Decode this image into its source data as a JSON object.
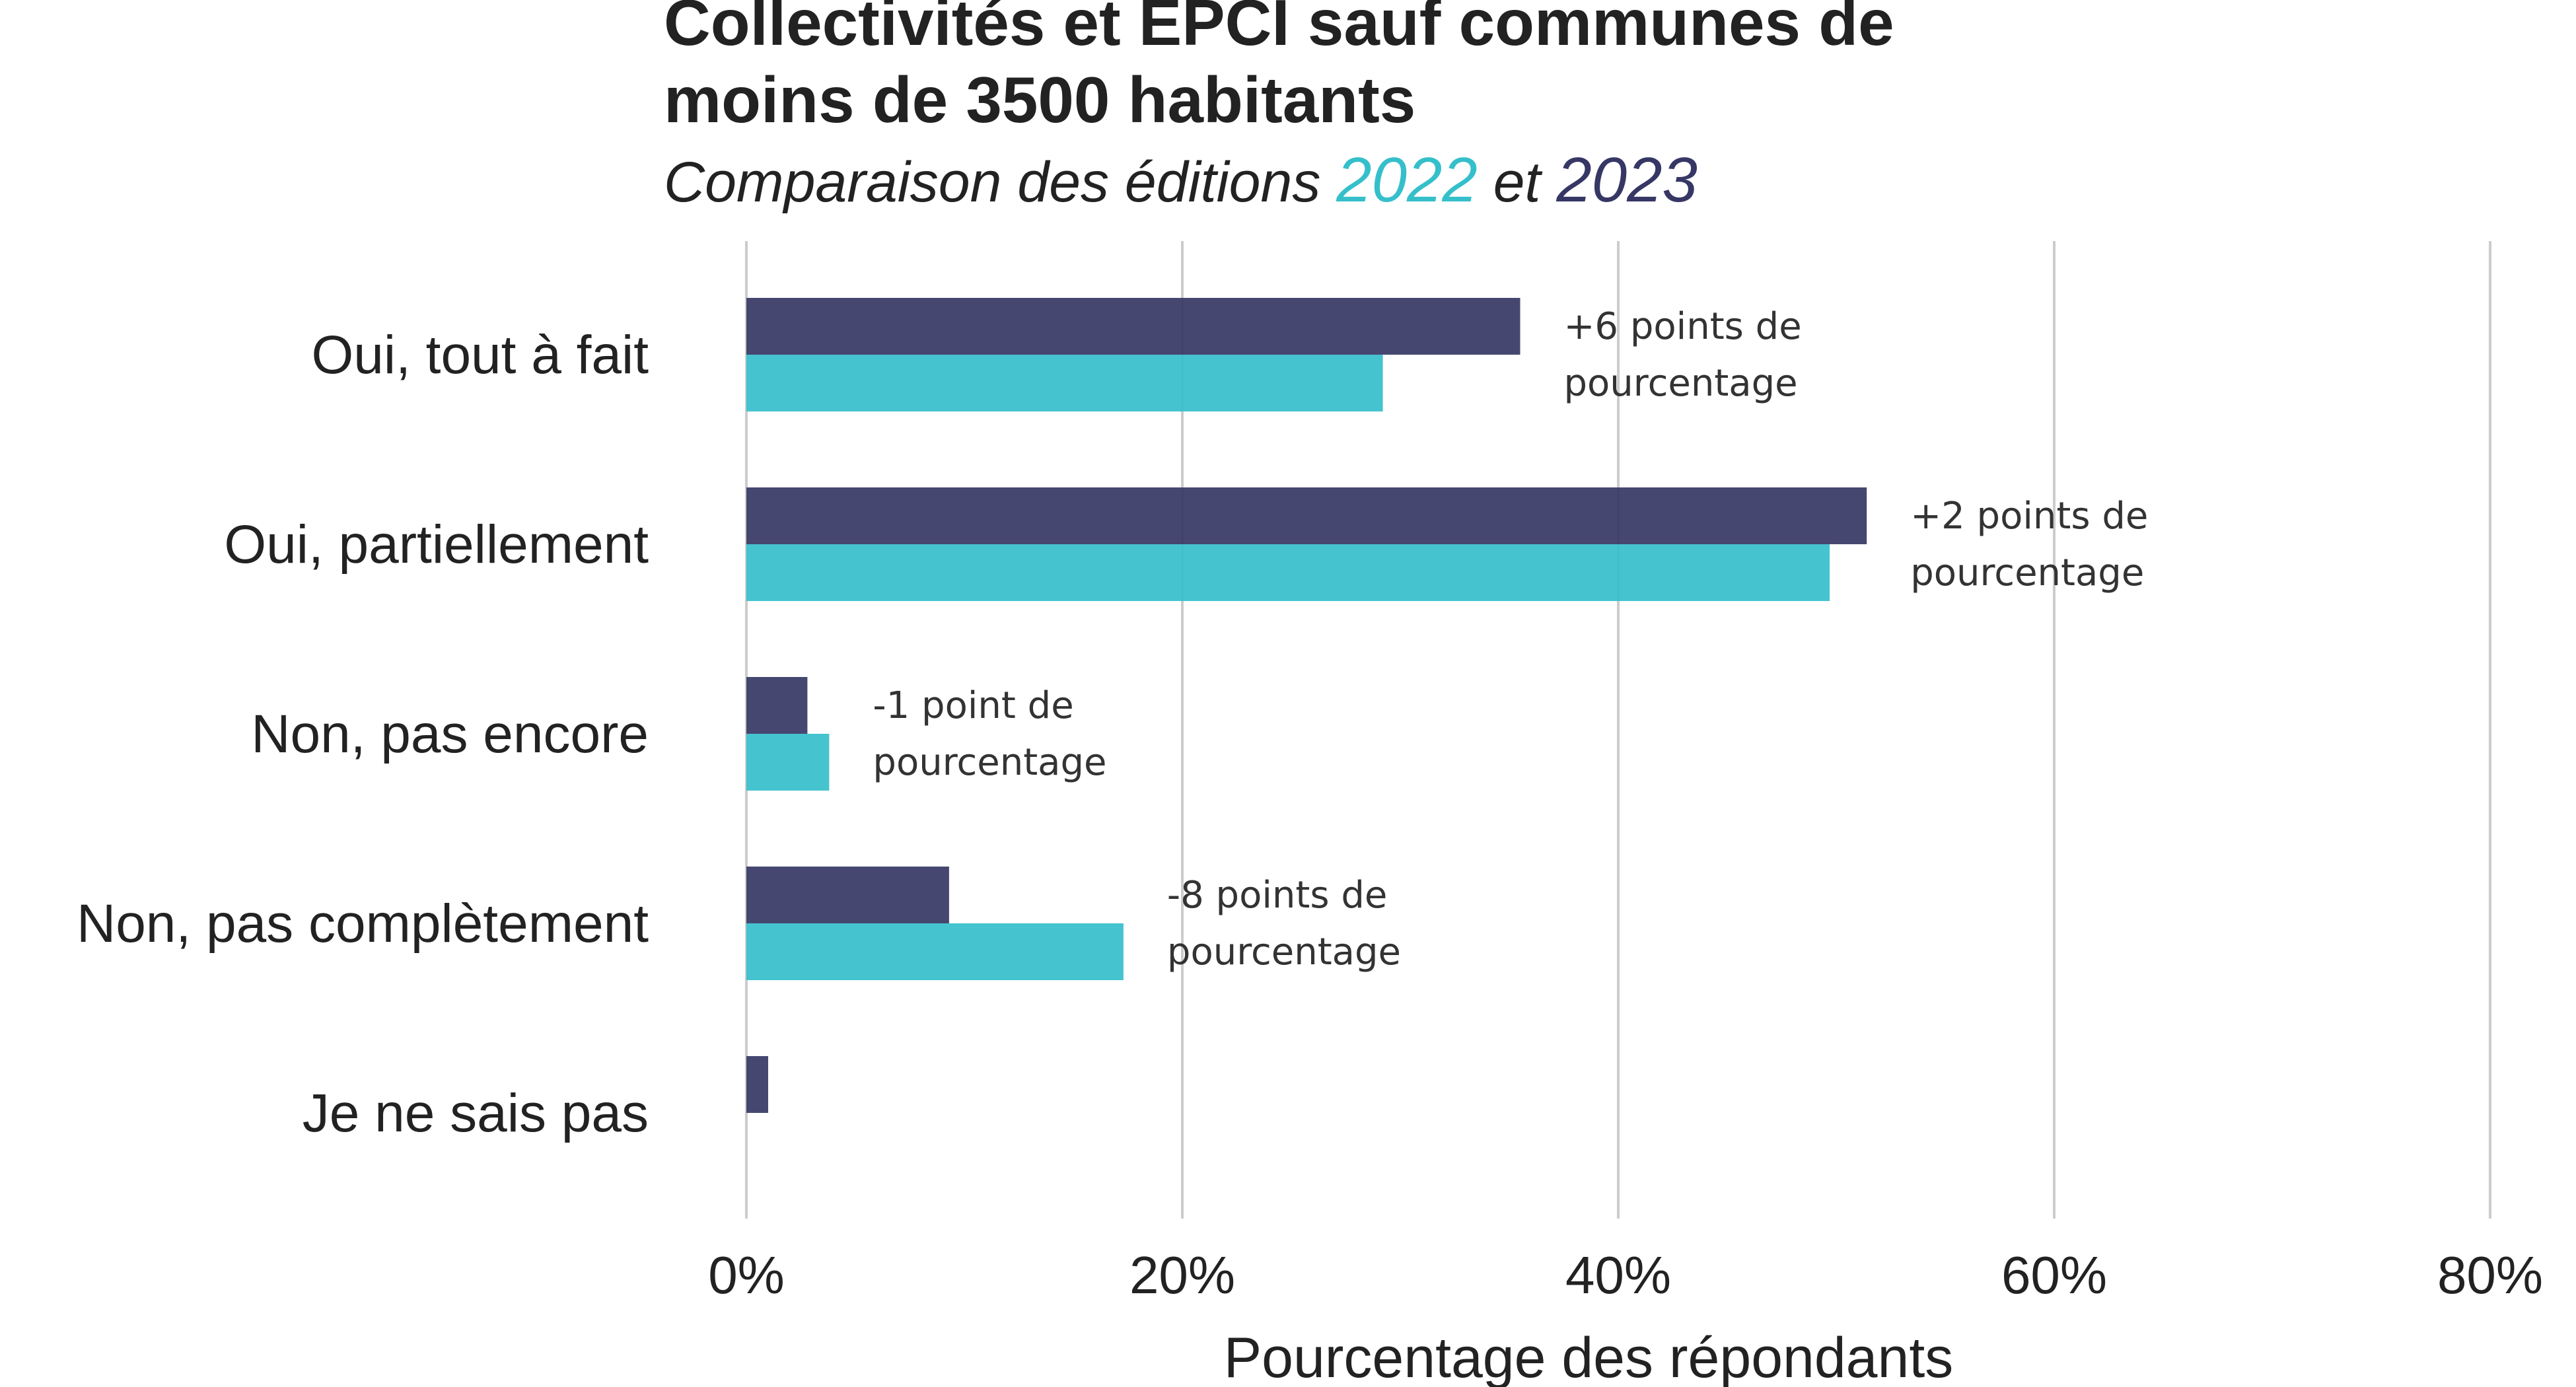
{
  "chart_data": {
    "type": "bar",
    "orientation": "horizontal",
    "title_lines": [
      "Collectivités et EPCI sauf communes de",
      "moins de 3500 habitants"
    ],
    "subtitle": {
      "prefix": "Comparaison des éditions ",
      "year_a": "2022",
      "middle": " et ",
      "year_b": "2023"
    },
    "xlabel": "Pourcentage des répondants",
    "ylabel": "",
    "xlim": [
      0,
      80
    ],
    "x_ticks": [
      0,
      20,
      40,
      60,
      80
    ],
    "x_tick_labels": [
      "0%",
      "20%",
      "40%",
      "60%",
      "80%"
    ],
    "grid": true,
    "categories": [
      "Oui, tout à fait",
      "Oui, partiellement",
      "Non, pas encore",
      "Non, pas complètement",
      "Je ne sais pas"
    ],
    "series": [
      {
        "name": "2023",
        "color": "#363765",
        "values": [
          35.5,
          51.4,
          2.8,
          9.3,
          1.0
        ]
      },
      {
        "name": "2022",
        "color": "#35BFCB",
        "values": [
          29.2,
          49.7,
          3.8,
          17.3,
          0
        ]
      }
    ],
    "annotations": [
      {
        "category_index": 0,
        "lines": [
          "+6 points de",
          "pourcentage"
        ]
      },
      {
        "category_index": 1,
        "lines": [
          "+2 points de",
          "pourcentage"
        ]
      },
      {
        "category_index": 2,
        "lines": [
          "-1 point de",
          "pourcentage"
        ]
      },
      {
        "category_index": 3,
        "lines": [
          "-8 points de",
          "pourcentage"
        ]
      }
    ]
  }
}
